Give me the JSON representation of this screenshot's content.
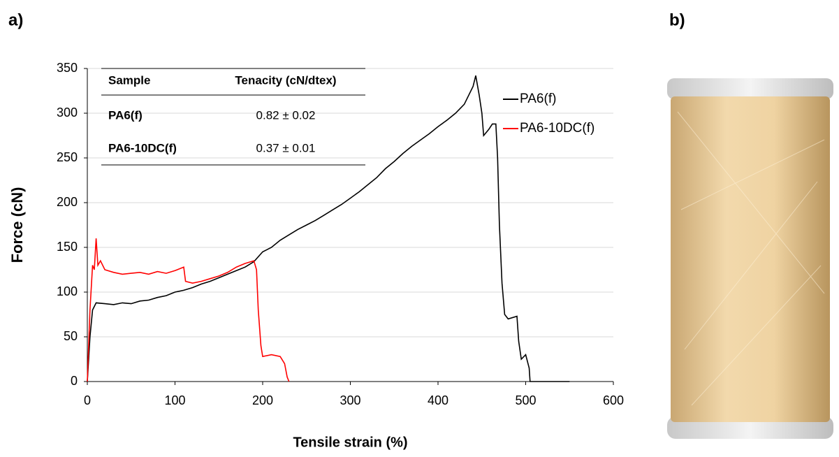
{
  "panel_labels": [
    "a)",
    "b)"
  ],
  "chart_data": {
    "type": "line",
    "xlabel": "Tensile strain (%)",
    "ylabel": "Force (cN)",
    "xlim": [
      0,
      600
    ],
    "xticks": [
      0,
      100,
      200,
      300,
      400,
      500,
      600
    ],
    "ylim": [
      0,
      350
    ],
    "yticks": [
      0,
      50,
      100,
      150,
      200,
      250,
      300,
      350
    ],
    "grid": true,
    "legend": "right",
    "series": [
      {
        "name": "PA6(f)",
        "color": "#000000",
        "x": [
          0,
          3,
          6,
          10,
          20,
          30,
          40,
          50,
          60,
          70,
          80,
          90,
          100,
          110,
          120,
          130,
          140,
          150,
          160,
          170,
          180,
          190,
          200,
          210,
          220,
          230,
          240,
          250,
          260,
          270,
          280,
          290,
          300,
          310,
          320,
          330,
          340,
          350,
          360,
          370,
          380,
          390,
          400,
          410,
          420,
          430,
          440,
          443,
          447,
          450,
          452,
          458,
          462,
          466,
          468,
          470,
          473,
          476,
          480,
          490,
          492,
          495,
          500,
          504,
          505,
          550
        ],
        "values": [
          0,
          50,
          80,
          88,
          87,
          86,
          88,
          87,
          90,
          91,
          94,
          96,
          100,
          102,
          105,
          109,
          112,
          116,
          120,
          124,
          128,
          134,
          145,
          150,
          158,
          164,
          170,
          175,
          180,
          186,
          192,
          198,
          205,
          212,
          220,
          228,
          238,
          246,
          255,
          263,
          270,
          277,
          285,
          292,
          300,
          310,
          330,
          342,
          320,
          300,
          275,
          282,
          288,
          288,
          250,
          175,
          110,
          75,
          70,
          73,
          45,
          25,
          30,
          15,
          0,
          0
        ]
      },
      {
        "name": "PA6-10DC(f)",
        "color": "#ff0000",
        "x": [
          0,
          3,
          6,
          8,
          10,
          12,
          15,
          20,
          30,
          40,
          50,
          60,
          70,
          80,
          90,
          100,
          110,
          112,
          120,
          130,
          140,
          150,
          160,
          170,
          180,
          190,
          193,
          195,
          198,
          200,
          210,
          220,
          225,
          228,
          230
        ],
        "values": [
          0,
          80,
          130,
          125,
          160,
          130,
          135,
          125,
          122,
          120,
          121,
          122,
          120,
          123,
          121,
          124,
          128,
          112,
          110,
          112,
          115,
          118,
          122,
          128,
          132,
          135,
          125,
          80,
          40,
          28,
          30,
          28,
          20,
          5,
          0
        ]
      }
    ],
    "table": {
      "headers": [
        "Sample",
        "Tenacity (cN/dtex)"
      ],
      "rows": [
        [
          "PA6(f)",
          "0.82 ± 0.02"
        ],
        [
          "PA6-10DC(f)",
          "0.37 ± 0.01"
        ]
      ]
    }
  }
}
